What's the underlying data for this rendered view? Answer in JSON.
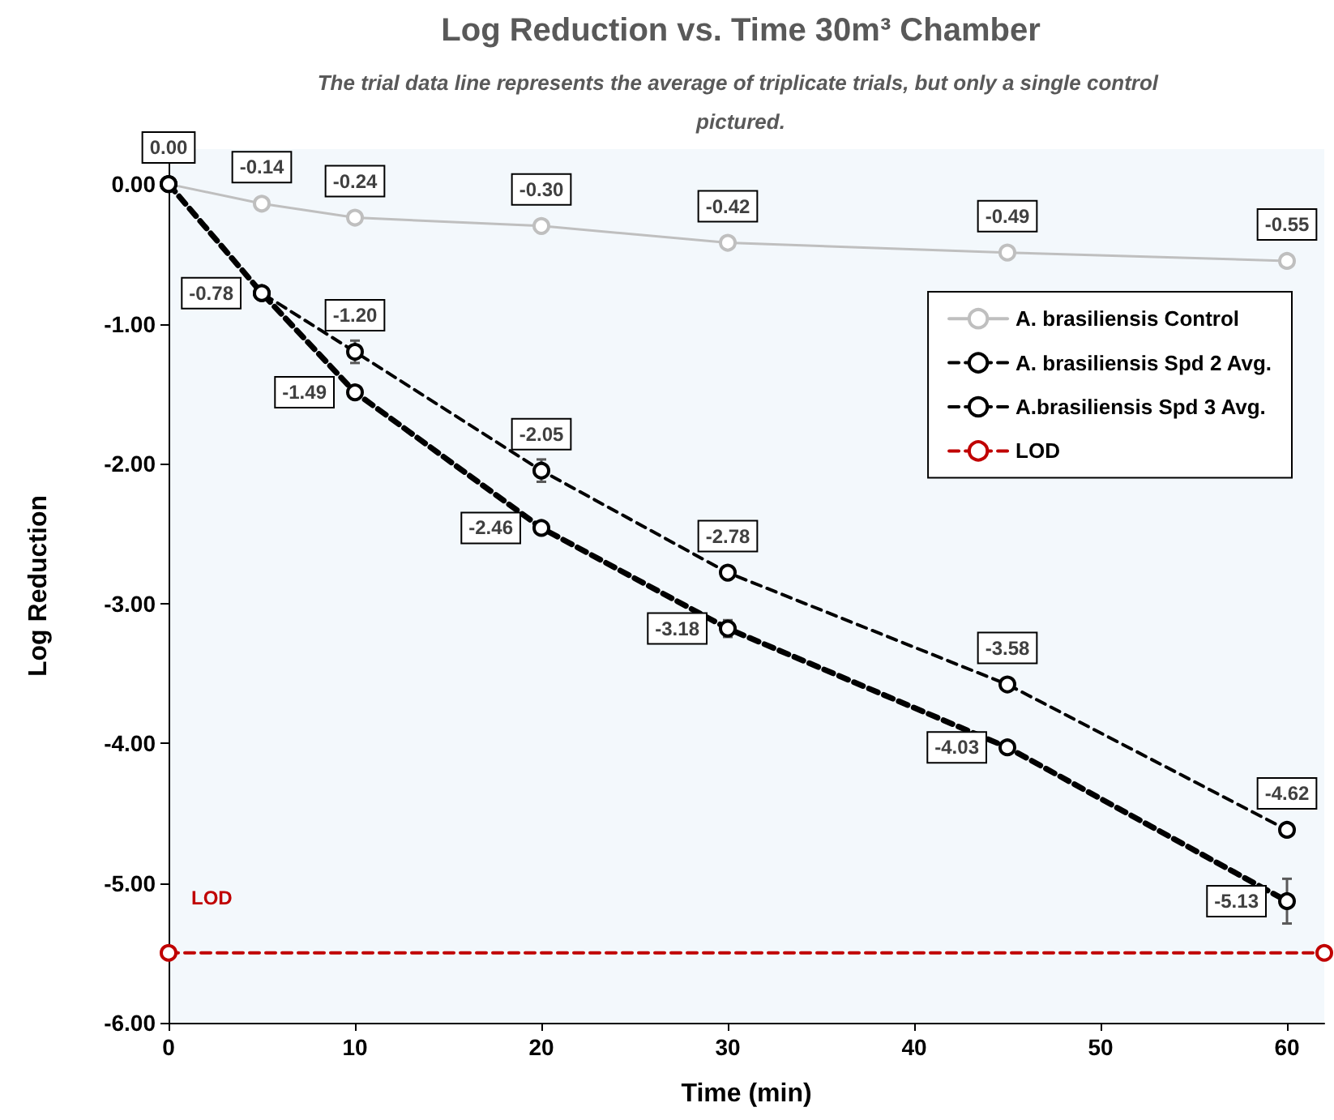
{
  "chart_data": {
    "type": "line",
    "title": "Log Reduction vs. Time 30m³ Chamber",
    "subtitle": "The trial data line represents the average of triplicate trials, but only a single control pictured.",
    "xlabel": "Time (min)",
    "ylabel": "Log Reduction",
    "xlim": [
      0,
      62
    ],
    "xticks": [
      0,
      10,
      20,
      30,
      40,
      50,
      60
    ],
    "ylim": [
      -6,
      0.25
    ],
    "yticks": [
      {
        "value": -6,
        "label": "-6.00"
      },
      {
        "value": -5,
        "label": "-5.00"
      },
      {
        "value": -4,
        "label": "-4.00"
      },
      {
        "value": -3,
        "label": "-3.00"
      },
      {
        "value": -2,
        "label": "-2.00"
      },
      {
        "value": -1,
        "label": "-1.00"
      },
      {
        "value": 0,
        "label": "0.00"
      }
    ],
    "grid": false,
    "legend": "top right",
    "marker": "circle",
    "series": [
      {
        "name": "A. brasiliensis Control",
        "color": "#bfbfbf",
        "line_style": "solid",
        "x": [
          0,
          5,
          10,
          20,
          30,
          45,
          60
        ],
        "values": [
          0,
          -0.14,
          -0.24,
          -0.3,
          -0.42,
          -0.49,
          -0.55
        ],
        "value_labels": [
          null,
          "-0.14",
          "-0.24",
          "-0.30",
          "-0.42",
          "-0.49",
          "-0.55"
        ]
      },
      {
        "name": "A. brasiliensis Spd 2 Avg.",
        "color": "#000000",
        "line_style": "dashed",
        "x": [
          0,
          5,
          10,
          20,
          30,
          45,
          60
        ],
        "values": [
          0,
          -0.78,
          -1.2,
          -2.05,
          -2.78,
          -3.58,
          -4.62
        ],
        "value_labels": [
          null,
          null,
          "-1.20",
          "-2.05",
          "-2.78",
          "-3.58",
          "-4.62"
        ],
        "errors": [
          null,
          null,
          0.08,
          0.08,
          null,
          null,
          null
        ]
      },
      {
        "name": "A.brasiliensis Spd 3 Avg.",
        "color": "#000000",
        "line_style": "dashed",
        "x": [
          0,
          5,
          10,
          20,
          30,
          45,
          60
        ],
        "values": [
          0,
          -0.78,
          -1.49,
          -2.46,
          -3.18,
          -4.03,
          -5.13
        ],
        "value_labels": [
          "0.00",
          "-0.78",
          "-1.49",
          "-2.46",
          "-3.18",
          "-4.03",
          "-5.13"
        ],
        "errors": [
          null,
          null,
          null,
          null,
          0.06,
          null,
          0.16
        ]
      },
      {
        "name": "LOD",
        "color": "#c00000",
        "line_style": "dashed",
        "x": [
          0,
          62
        ],
        "values": [
          -5.5,
          -5.5
        ]
      }
    ],
    "annotations": [
      "LOD"
    ]
  }
}
